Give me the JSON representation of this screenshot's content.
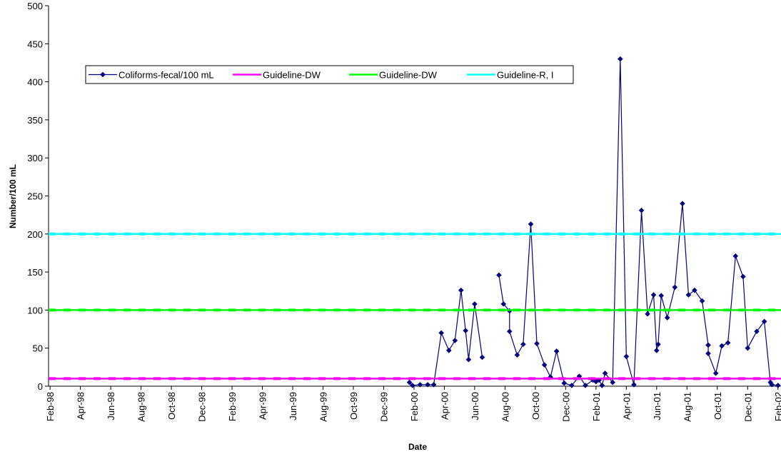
{
  "chart_data": {
    "type": "line",
    "x_label": "Date",
    "y_label": "Number/100 mL",
    "xlim": [
      -0.1,
      48.2
    ],
    "ylim": [
      0,
      500
    ],
    "yticks": [
      0,
      50,
      100,
      150,
      200,
      250,
      300,
      350,
      400,
      450,
      500
    ],
    "xticks": [
      {
        "value": 0,
        "label": "Feb-98"
      },
      {
        "value": 2,
        "label": "Apr-98"
      },
      {
        "value": 4,
        "label": "Jun-98"
      },
      {
        "value": 6,
        "label": "Aug-98"
      },
      {
        "value": 8,
        "label": "Oct-98"
      },
      {
        "value": 10,
        "label": "Dec-98"
      },
      {
        "value": 12,
        "label": "Feb-99"
      },
      {
        "value": 14,
        "label": "Apr-99"
      },
      {
        "value": 16,
        "label": "Jun-99"
      },
      {
        "value": 18,
        "label": "Aug-99"
      },
      {
        "value": 20,
        "label": "Oct-99"
      },
      {
        "value": 22,
        "label": "Dec-99"
      },
      {
        "value": 24,
        "label": "Feb-00"
      },
      {
        "value": 26,
        "label": "Apr-00"
      },
      {
        "value": 28,
        "label": "Jun-00"
      },
      {
        "value": 30,
        "label": "Aug-00"
      },
      {
        "value": 32,
        "label": "Oct-00"
      },
      {
        "value": 34,
        "label": "Dec-00"
      },
      {
        "value": 36,
        "label": "Feb-01"
      },
      {
        "value": 38,
        "label": "Apr-01"
      },
      {
        "value": 40,
        "label": "Jun-01"
      },
      {
        "value": 42,
        "label": "Aug-01"
      },
      {
        "value": 44,
        "label": "Oct-01"
      },
      {
        "value": 46,
        "label": "Dec-01"
      },
      {
        "value": 48,
        "label": "Feb-02"
      }
    ],
    "series": [
      {
        "name": "Coliforms-fecal/100 mL",
        "color": "#000080",
        "x": [
          23.7,
          23.9,
          24.4,
          24.9,
          25.3,
          25.8,
          26.3,
          26.7,
          27.1,
          27.4,
          27.6,
          28.0,
          28.5,
          null,
          29.6,
          29.9,
          30.3,
          30.3,
          30.8,
          31.2,
          31.7,
          32.1,
          32.6,
          33.0,
          33.4,
          33.9,
          34.4,
          34.9,
          35.3,
          35.8,
          36.0,
          36.2,
          36.4,
          36.6,
          37.1,
          37.6,
          38.0,
          38.5,
          39.0,
          39.4,
          39.8,
          40.0,
          40.1,
          40.3,
          40.7,
          41.2,
          41.7,
          42.1,
          42.5,
          43.0,
          43.4,
          43.4,
          43.9,
          44.3,
          44.7,
          45.2,
          45.7,
          46.0,
          46.6,
          47.1,
          47.5,
          47.6,
          48.0
        ],
        "values": [
          5,
          1,
          2,
          2,
          2,
          70,
          47,
          60,
          126,
          73,
          35,
          108,
          38,
          null,
          146,
          108,
          99,
          72,
          41,
          55,
          213,
          56,
          28,
          12,
          46,
          4,
          1,
          13,
          1,
          8,
          6,
          8,
          1,
          17,
          5,
          430,
          39,
          2,
          231,
          95,
          120,
          47,
          55,
          119,
          90,
          130,
          240,
          120,
          126,
          112,
          54,
          43,
          17,
          53,
          57,
          171,
          144,
          50,
          72,
          85,
          5,
          2,
          1
        ]
      },
      {
        "name": "Guideline-DW",
        "color": "#ff00ff",
        "value": 10
      },
      {
        "name": "Guideline-DW",
        "color": "#00ff00",
        "value": 100
      },
      {
        "name": "Guideline-R, I",
        "color": "#00ffff",
        "value": 200
      }
    ]
  }
}
